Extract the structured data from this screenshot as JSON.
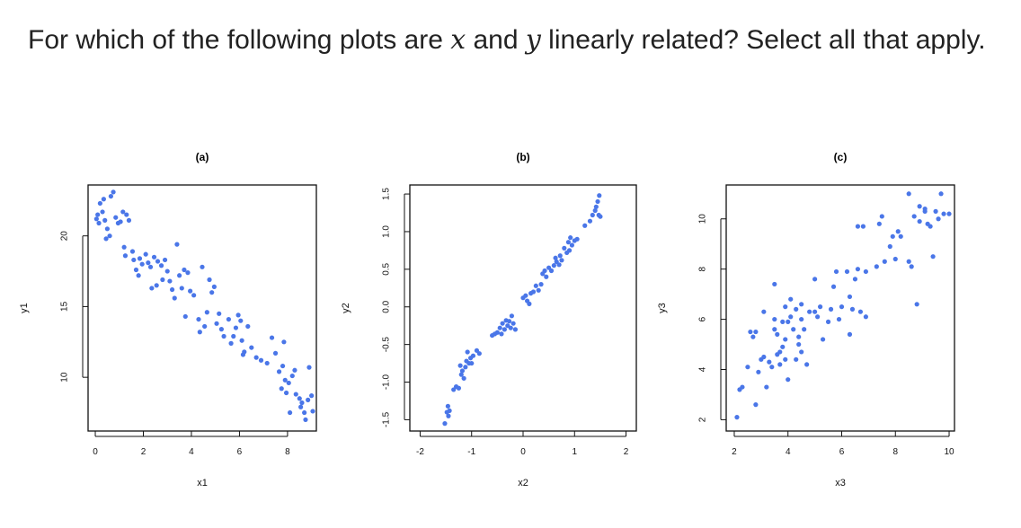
{
  "question": {
    "part1": "For which of the following plots are ",
    "var_x": "x",
    "part2": " and ",
    "var_y": "y",
    "part3": " linearly related?  Select all that apply."
  },
  "colors": {
    "points": "#4a76e8",
    "frame": "#111111"
  },
  "chart_data": [
    {
      "type": "scatter",
      "title": "(a)",
      "xlabel": "x1",
      "ylabel": "y1",
      "xlim": [
        -0.3,
        9.2
      ],
      "ylim": [
        6.2,
        23.6
      ],
      "xticks": [
        0,
        2,
        4,
        6,
        8
      ],
      "yticks": [
        10,
        15,
        20
      ],
      "points": [
        [
          0.05,
          21.2
        ],
        [
          0.1,
          21.5
        ],
        [
          0.15,
          20.9
        ],
        [
          0.2,
          22.3
        ],
        [
          0.3,
          21.7
        ],
        [
          0.35,
          22.6
        ],
        [
          0.4,
          21.1
        ],
        [
          0.45,
          19.8
        ],
        [
          0.5,
          20.5
        ],
        [
          0.6,
          20.0
        ],
        [
          0.65,
          22.8
        ],
        [
          0.75,
          23.1
        ],
        [
          0.85,
          21.3
        ],
        [
          0.95,
          20.9
        ],
        [
          1.05,
          21.0
        ],
        [
          1.15,
          21.7
        ],
        [
          1.2,
          19.2
        ],
        [
          1.25,
          18.6
        ],
        [
          1.3,
          21.5
        ],
        [
          1.4,
          21.1
        ],
        [
          1.55,
          18.9
        ],
        [
          1.6,
          18.3
        ],
        [
          1.7,
          17.6
        ],
        [
          1.8,
          17.2
        ],
        [
          1.85,
          18.4
        ],
        [
          1.95,
          18.0
        ],
        [
          2.1,
          18.7
        ],
        [
          2.2,
          18.1
        ],
        [
          2.3,
          17.8
        ],
        [
          2.35,
          16.3
        ],
        [
          2.45,
          18.5
        ],
        [
          2.55,
          16.5
        ],
        [
          2.6,
          18.2
        ],
        [
          2.75,
          17.9
        ],
        [
          2.8,
          16.9
        ],
        [
          2.9,
          18.3
        ],
        [
          3.0,
          17.5
        ],
        [
          3.1,
          16.8
        ],
        [
          3.2,
          16.2
        ],
        [
          3.3,
          15.6
        ],
        [
          3.4,
          19.4
        ],
        [
          3.5,
          17.2
        ],
        [
          3.6,
          16.3
        ],
        [
          3.7,
          17.6
        ],
        [
          3.75,
          14.3
        ],
        [
          3.85,
          17.4
        ],
        [
          3.95,
          16.1
        ],
        [
          4.1,
          15.8
        ],
        [
          4.3,
          14.1
        ],
        [
          4.35,
          13.2
        ],
        [
          4.45,
          17.8
        ],
        [
          4.55,
          13.6
        ],
        [
          4.65,
          14.6
        ],
        [
          4.75,
          16.9
        ],
        [
          4.85,
          16.0
        ],
        [
          4.95,
          16.4
        ],
        [
          5.05,
          13.8
        ],
        [
          5.15,
          14.5
        ],
        [
          5.25,
          13.4
        ],
        [
          5.35,
          12.9
        ],
        [
          5.55,
          14.1
        ],
        [
          5.65,
          12.4
        ],
        [
          5.75,
          12.9
        ],
        [
          5.85,
          13.5
        ],
        [
          5.95,
          14.4
        ],
        [
          6.05,
          14.0
        ],
        [
          6.1,
          12.6
        ],
        [
          6.15,
          11.6
        ],
        [
          6.2,
          11.8
        ],
        [
          6.35,
          13.6
        ],
        [
          6.5,
          12.1
        ],
        [
          6.7,
          11.4
        ],
        [
          6.9,
          11.2
        ],
        [
          7.15,
          11.0
        ],
        [
          7.35,
          12.8
        ],
        [
          7.5,
          11.7
        ],
        [
          7.65,
          10.4
        ],
        [
          7.75,
          9.2
        ],
        [
          7.8,
          10.8
        ],
        [
          7.85,
          12.5
        ],
        [
          7.9,
          9.8
        ],
        [
          7.95,
          8.9
        ],
        [
          8.05,
          9.6
        ],
        [
          8.1,
          7.5
        ],
        [
          8.2,
          10.1
        ],
        [
          8.3,
          10.5
        ],
        [
          8.35,
          8.8
        ],
        [
          8.5,
          8.5
        ],
        [
          8.55,
          7.9
        ],
        [
          8.6,
          8.2
        ],
        [
          8.7,
          7.5
        ],
        [
          8.75,
          7.0
        ],
        [
          8.85,
          8.4
        ],
        [
          8.9,
          10.7
        ],
        [
          9.0,
          8.7
        ],
        [
          9.05,
          7.6
        ]
      ]
    },
    {
      "type": "scatter",
      "title": "(b)",
      "xlabel": "x2",
      "ylabel": "y2",
      "xlim": [
        -2.2,
        2.2
      ],
      "ylim": [
        -1.65,
        1.62
      ],
      "xticks": [
        -2,
        -1,
        0,
        1,
        2
      ],
      "yticks": [
        -1.5,
        -1.0,
        -0.5,
        0.0,
        0.5,
        1.0,
        1.5
      ],
      "points": [
        [
          -1.52,
          -1.55
        ],
        [
          -1.48,
          -1.4
        ],
        [
          -1.46,
          -1.32
        ],
        [
          -1.45,
          -1.45
        ],
        [
          -1.43,
          -1.38
        ],
        [
          -1.35,
          -1.1
        ],
        [
          -1.3,
          -1.06
        ],
        [
          -1.25,
          -1.08
        ],
        [
          -1.22,
          -0.78
        ],
        [
          -1.2,
          -0.9
        ],
        [
          -1.18,
          -0.85
        ],
        [
          -1.15,
          -0.95
        ],
        [
          -1.12,
          -0.8
        ],
        [
          -1.1,
          -0.72
        ],
        [
          -1.08,
          -0.6
        ],
        [
          -1.05,
          -0.75
        ],
        [
          -1.02,
          -0.68
        ],
        [
          -1.0,
          -0.75
        ],
        [
          -0.97,
          -0.65
        ],
        [
          -0.9,
          -0.58
        ],
        [
          -0.85,
          -0.62
        ],
        [
          -0.6,
          -0.38
        ],
        [
          -0.55,
          -0.36
        ],
        [
          -0.5,
          -0.34
        ],
        [
          -0.45,
          -0.28
        ],
        [
          -0.42,
          -0.36
        ],
        [
          -0.4,
          -0.22
        ],
        [
          -0.36,
          -0.3
        ],
        [
          -0.33,
          -0.18
        ],
        [
          -0.3,
          -0.25
        ],
        [
          -0.27,
          -0.19
        ],
        [
          -0.24,
          -0.28
        ],
        [
          -0.22,
          -0.12
        ],
        [
          -0.19,
          -0.22
        ],
        [
          -0.15,
          -0.3
        ],
        [
          0.0,
          0.12
        ],
        [
          0.05,
          0.15
        ],
        [
          0.08,
          0.08
        ],
        [
          0.12,
          0.04
        ],
        [
          0.15,
          0.18
        ],
        [
          0.2,
          0.2
        ],
        [
          0.25,
          0.28
        ],
        [
          0.3,
          0.22
        ],
        [
          0.35,
          0.3
        ],
        [
          0.38,
          0.44
        ],
        [
          0.42,
          0.48
        ],
        [
          0.45,
          0.4
        ],
        [
          0.5,
          0.52
        ],
        [
          0.55,
          0.48
        ],
        [
          0.6,
          0.55
        ],
        [
          0.63,
          0.65
        ],
        [
          0.65,
          0.6
        ],
        [
          0.7,
          0.56
        ],
        [
          0.72,
          0.68
        ],
        [
          0.75,
          0.62
        ],
        [
          0.8,
          0.78
        ],
        [
          0.85,
          0.72
        ],
        [
          0.88,
          0.86
        ],
        [
          0.9,
          0.75
        ],
        [
          0.92,
          0.92
        ],
        [
          0.95,
          0.82
        ],
        [
          1.0,
          0.88
        ],
        [
          1.05,
          0.9
        ],
        [
          1.2,
          1.08
        ],
        [
          1.3,
          1.14
        ],
        [
          1.35,
          1.22
        ],
        [
          1.4,
          1.28
        ],
        [
          1.42,
          1.33
        ],
        [
          1.45,
          1.4
        ],
        [
          1.47,
          1.22
        ],
        [
          1.48,
          1.48
        ],
        [
          1.5,
          1.2
        ]
      ]
    },
    {
      "type": "scatter",
      "title": "(c)",
      "xlabel": "x3",
      "ylabel": "y3",
      "xlim": [
        1.7,
        10.2
      ],
      "ylim": [
        1.55,
        11.35
      ],
      "xticks": [
        2,
        4,
        6,
        8,
        10
      ],
      "yticks": [
        2,
        4,
        6,
        8,
        10
      ],
      "points": [
        [
          2.1,
          2.1
        ],
        [
          2.2,
          3.2
        ],
        [
          2.3,
          3.3
        ],
        [
          2.5,
          4.1
        ],
        [
          2.6,
          5.5
        ],
        [
          2.7,
          5.3
        ],
        [
          2.8,
          2.6
        ],
        [
          2.8,
          5.5
        ],
        [
          2.9,
          3.9
        ],
        [
          3.0,
          4.4
        ],
        [
          3.1,
          4.5
        ],
        [
          3.1,
          6.3
        ],
        [
          3.2,
          3.3
        ],
        [
          3.3,
          4.3
        ],
        [
          3.4,
          4.1
        ],
        [
          3.5,
          6.0
        ],
        [
          3.5,
          5.6
        ],
        [
          3.5,
          7.4
        ],
        [
          3.6,
          4.6
        ],
        [
          3.6,
          5.4
        ],
        [
          3.7,
          4.2
        ],
        [
          3.7,
          4.7
        ],
        [
          3.8,
          5.9
        ],
        [
          3.8,
          4.9
        ],
        [
          3.9,
          5.2
        ],
        [
          3.9,
          6.5
        ],
        [
          3.9,
          4.4
        ],
        [
          4.0,
          5.9
        ],
        [
          4.0,
          3.6
        ],
        [
          4.1,
          6.8
        ],
        [
          4.1,
          6.1
        ],
        [
          4.2,
          5.6
        ],
        [
          4.3,
          4.4
        ],
        [
          4.3,
          6.4
        ],
        [
          4.4,
          5.3
        ],
        [
          4.4,
          5.0
        ],
        [
          4.5,
          6.6
        ],
        [
          4.5,
          6.0
        ],
        [
          4.5,
          4.7
        ],
        [
          4.6,
          5.6
        ],
        [
          4.7,
          4.2
        ],
        [
          4.8,
          6.3
        ],
        [
          5.0,
          7.6
        ],
        [
          5.0,
          6.3
        ],
        [
          5.1,
          6.1
        ],
        [
          5.2,
          6.5
        ],
        [
          5.3,
          5.2
        ],
        [
          5.5,
          5.9
        ],
        [
          5.6,
          6.4
        ],
        [
          5.7,
          7.3
        ],
        [
          5.8,
          7.9
        ],
        [
          5.9,
          6.0
        ],
        [
          6.0,
          6.5
        ],
        [
          6.2,
          7.9
        ],
        [
          6.3,
          6.9
        ],
        [
          6.3,
          5.4
        ],
        [
          6.4,
          6.4
        ],
        [
          6.5,
          7.6
        ],
        [
          6.6,
          9.7
        ],
        [
          6.6,
          8.0
        ],
        [
          6.7,
          6.3
        ],
        [
          6.8,
          9.7
        ],
        [
          6.9,
          7.9
        ],
        [
          6.9,
          6.1
        ],
        [
          7.3,
          8.1
        ],
        [
          7.4,
          9.8
        ],
        [
          7.5,
          10.1
        ],
        [
          7.6,
          8.3
        ],
        [
          7.8,
          8.9
        ],
        [
          7.9,
          9.3
        ],
        [
          8.0,
          8.4
        ],
        [
          8.1,
          9.5
        ],
        [
          8.2,
          9.3
        ],
        [
          8.5,
          11.0
        ],
        [
          8.5,
          8.3
        ],
        [
          8.6,
          8.1
        ],
        [
          8.7,
          10.1
        ],
        [
          8.8,
          6.6
        ],
        [
          8.9,
          10.5
        ],
        [
          8.9,
          9.9
        ],
        [
          9.1,
          10.3
        ],
        [
          9.1,
          10.4
        ],
        [
          9.2,
          9.8
        ],
        [
          9.3,
          9.7
        ],
        [
          9.4,
          8.5
        ],
        [
          9.5,
          10.3
        ],
        [
          9.6,
          10.0
        ],
        [
          9.7,
          11.0
        ],
        [
          9.8,
          10.2
        ],
        [
          10.0,
          10.2
        ]
      ]
    }
  ]
}
